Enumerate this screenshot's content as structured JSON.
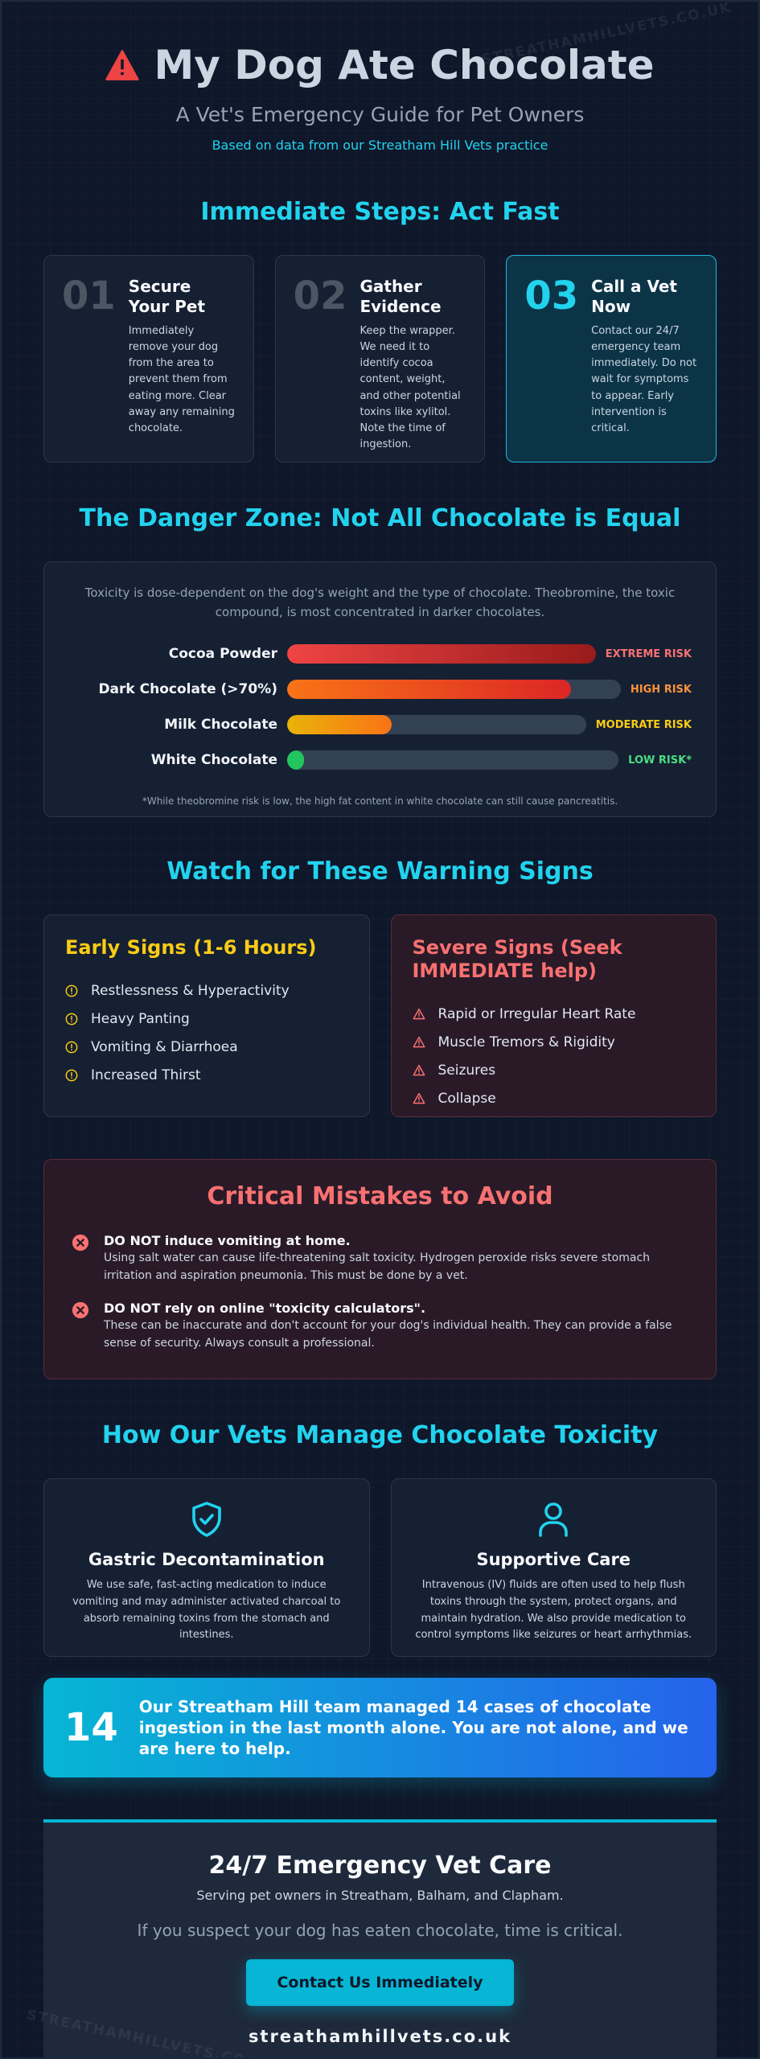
{
  "watermark": "STREATHAMHILLVETS.CO.UK",
  "header": {
    "title": "My Dog Ate Chocolate",
    "subtitle": "A Vet's Emergency Guide for Pet Owners",
    "source": "Based on data from our Streatham Hill Vets practice"
  },
  "steps": {
    "heading": "Immediate Steps: Act Fast",
    "items": [
      {
        "number": "01",
        "title": "Secure Your Pet",
        "text": "Immediately remove your dog from the area to prevent them from eating more. Clear away any remaining chocolate."
      },
      {
        "number": "02",
        "title": "Gather Evidence",
        "text": "Keep the wrapper. We need it to identify cocoa content, weight, and other potential toxins like xylitol. Note the time of ingestion."
      },
      {
        "number": "03",
        "title": "Call a Vet Now",
        "text": "Contact our 24/7 emergency team immediately. Do not wait for symptoms to appear. Early intervention is critical."
      }
    ]
  },
  "danger": {
    "heading": "The Danger Zone: Not All Chocolate is Equal",
    "intro": "Toxicity is dose-dependent on the dog's weight and the type of chocolate. Theobromine, the toxic compound, is most concentrated in darker chocolates.",
    "rows": [
      {
        "label": "Cocoa Powder",
        "level": 100,
        "risk": "EXTREME RISK"
      },
      {
        "label": "Dark Chocolate (>70%)",
        "level": 85,
        "risk": "HIGH RISK"
      },
      {
        "label": "Milk Chocolate",
        "level": 35,
        "risk": "MODERATE RISK"
      },
      {
        "label": "White Chocolate",
        "level": 5,
        "risk": "LOW RISK*"
      }
    ],
    "footnote": "*While theobromine risk is low, the high fat content in white chocolate can still cause pancreatitis."
  },
  "warnings": {
    "heading": "Watch for These Warning Signs",
    "early": {
      "title": "Early Signs (1-6 Hours)",
      "items": [
        "Restlessness & Hyperactivity",
        "Heavy Panting",
        "Vomiting & Diarrhoea",
        "Increased Thirst"
      ]
    },
    "severe": {
      "title": "Severe Signs (Seek IMMEDIATE help)",
      "items": [
        "Rapid or Irregular Heart Rate",
        "Muscle Tremors & Rigidity",
        "Seizures",
        "Collapse"
      ]
    }
  },
  "mistakes": {
    "heading": "Critical Mistakes to Avoid",
    "items": [
      {
        "title": "DO NOT induce vomiting at home.",
        "text": "Using salt water can cause life-threatening salt toxicity. Hydrogen peroxide risks severe stomach irritation and aspiration pneumonia. This must be done by a vet."
      },
      {
        "title": "DO NOT rely on online \"toxicity calculators\".",
        "text": "These can be inaccurate and don't account for your dog's individual health. They can provide a false sense of security. Always consult a professional."
      }
    ]
  },
  "treatment": {
    "heading": "How Our Vets Manage Chocolate Toxicity",
    "items": [
      {
        "title": "Gastric Decontamination",
        "text": "We use safe, fast-acting medication to induce vomiting and may administer activated charcoal to absorb remaining toxins from the stomach and intestines."
      },
      {
        "title": "Supportive Care",
        "text": "Intravenous (IV) fluids are often used to help flush toxins through the system, protect organs, and maintain hydration. We also provide medication to control symptoms like seizures or heart arrhythmias."
      }
    ]
  },
  "stat": {
    "number": "14",
    "text": "Our Streatham Hill team managed 14 cases of chocolate ingestion in the last month alone. You are not alone, and we are here to help."
  },
  "footer": {
    "title": "24/7 Emergency Vet Care",
    "service": "Serving pet owners in Streatham, Balham, and Clapham.",
    "prompt": "If you suspect your dog has eaten chocolate, time is critical.",
    "button": "Contact Us Immediately",
    "website": "streathamhillvets.co.uk"
  }
}
